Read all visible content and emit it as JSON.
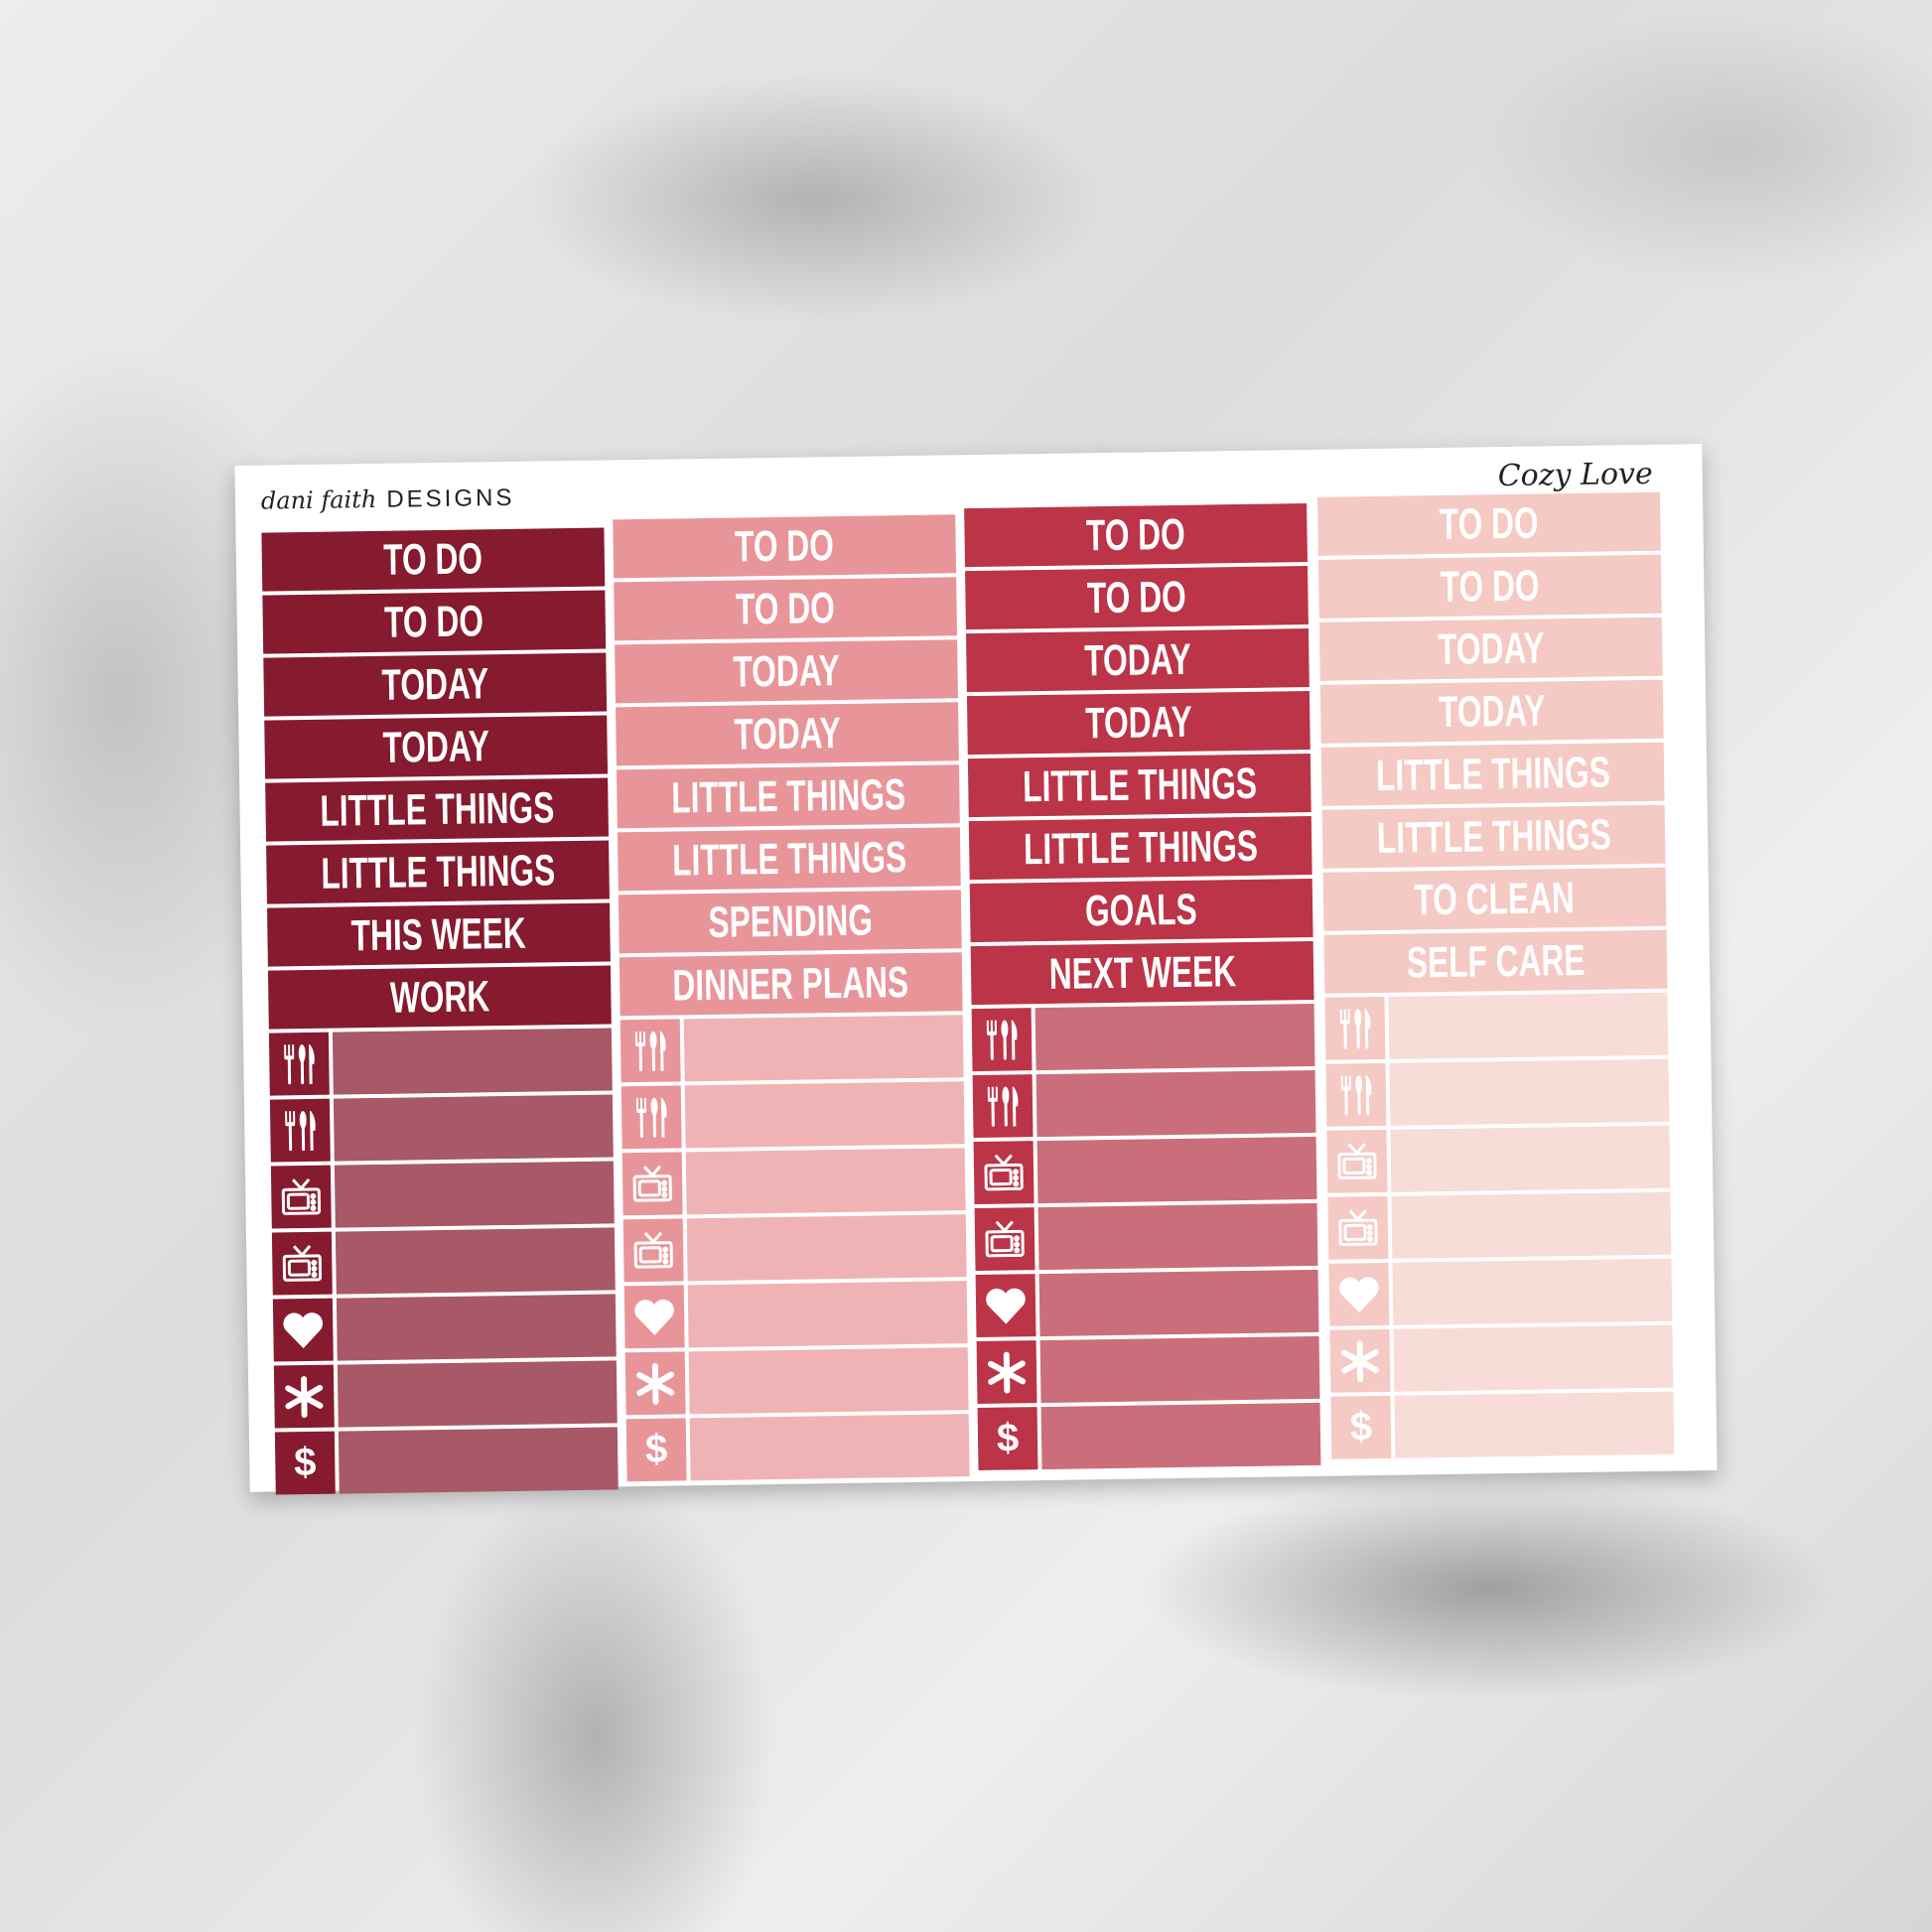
{
  "sheet": {
    "brand": {
      "script": "dani faith",
      "text": "DESIGNS"
    },
    "title": "Cozy Love"
  },
  "icons": [
    "fork-knife-icon",
    "fork-knife-icon",
    "tv-icon",
    "tv-icon",
    "heart-icon",
    "asterisk-icon",
    "dollar-icon"
  ],
  "columns": [
    {
      "header_color": "#861a2e",
      "body_color": "#a85866",
      "labels": [
        "TO DO",
        "TO DO",
        "TODAY",
        "TODAY",
        "LITTLE THINGS",
        "LITTLE THINGS",
        "THIS WEEK",
        "WORK"
      ]
    },
    {
      "header_color": "#e8959a",
      "body_color": "#efb3b6",
      "labels": [
        "TO DO",
        "TO DO",
        "TODAY",
        "TODAY",
        "LITTLE THINGS",
        "LITTLE THINGS",
        "SPENDING",
        "DINNER PLANS"
      ]
    },
    {
      "header_color": "#bb3448",
      "body_color": "#cb6e7b",
      "labels": [
        "TO DO",
        "TO DO",
        "TODAY",
        "TODAY",
        "LITTLE THINGS",
        "LITTLE THINGS",
        "GOALS",
        "NEXT WEEK"
      ]
    },
    {
      "header_color": "#f5c9c4",
      "body_color": "#f8dcd8",
      "labels": [
        "TO DO",
        "TO DO",
        "TODAY",
        "TODAY",
        "LITTLE THINGS",
        "LITTLE THINGS",
        "TO CLEAN",
        "SELF CARE"
      ]
    }
  ]
}
